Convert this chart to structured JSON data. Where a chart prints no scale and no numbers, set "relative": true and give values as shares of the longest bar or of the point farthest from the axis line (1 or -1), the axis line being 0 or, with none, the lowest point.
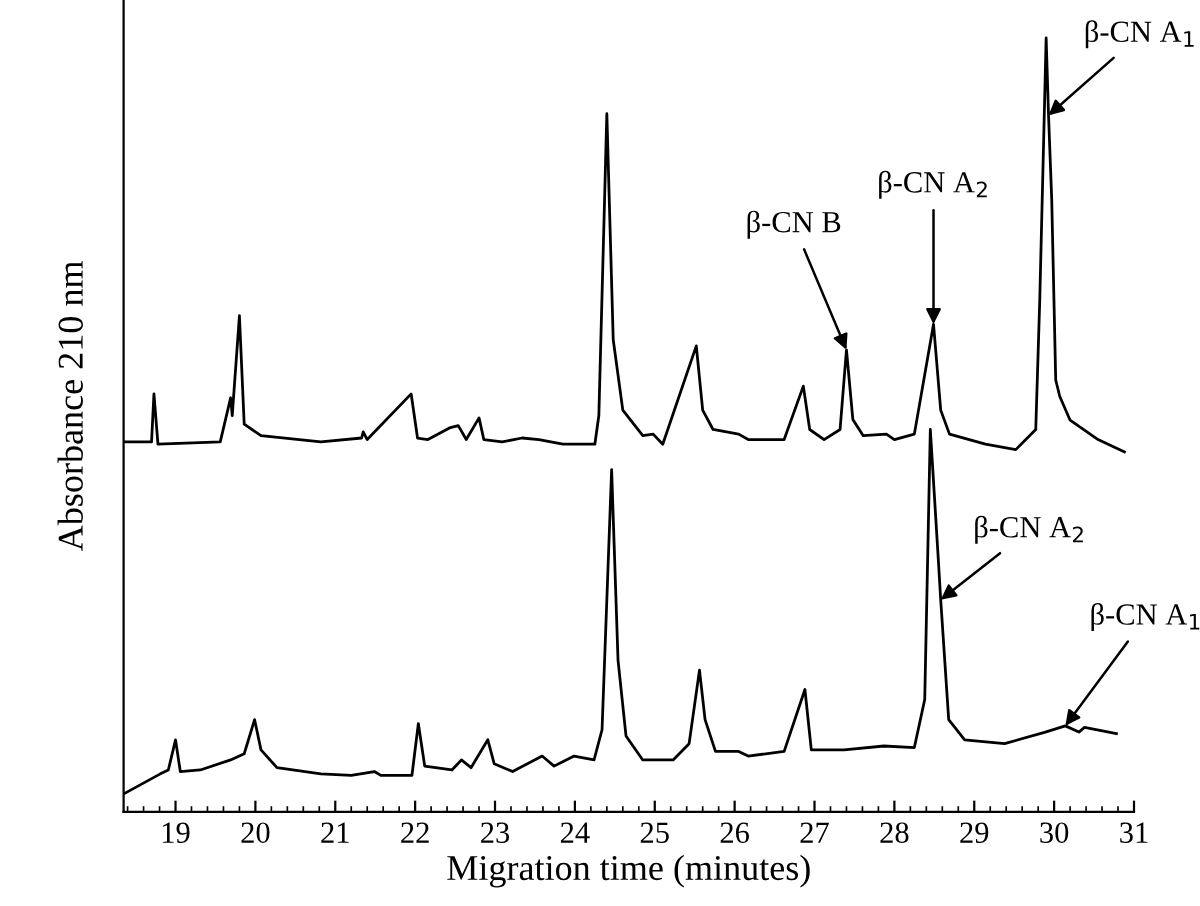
{
  "chart_data": {
    "type": "line",
    "relative": true,
    "xlabel": "Migration time (minutes)",
    "ylabel": "Absorbance 210 nm",
    "xlim": [
      18.35,
      31
    ],
    "xticks": [
      19,
      20,
      21,
      22,
      23,
      24,
      25,
      26,
      27,
      28,
      29,
      30,
      31
    ],
    "grid": false,
    "legend": false,
    "marker": "none",
    "line_style": "solid",
    "tick_labels": "x",
    "series": [
      {
        "color": "#000000",
        "x": [
          18.35,
          18.7,
          18.73,
          18.78,
          19.56,
          19.69,
          19.71,
          19.8,
          19.86,
          20.07,
          20.82,
          21.33,
          21.35,
          21.4,
          21.95,
          22.03,
          22.16,
          22.43,
          22.54,
          22.64,
          22.8,
          22.86,
          23.09,
          23.34,
          23.55,
          23.85,
          24.25,
          24.3,
          24.4,
          24.48,
          24.6,
          24.85,
          24.98,
          25.1,
          25.52,
          25.6,
          25.73,
          26.05,
          26.17,
          26.62,
          26.86,
          26.94,
          27.12,
          27.32,
          27.4,
          27.48,
          27.61,
          27.9,
          28.0,
          28.25,
          28.49,
          28.58,
          28.69,
          29.14,
          29.52,
          29.77,
          29.82,
          29.9,
          29.93,
          29.97,
          30.02,
          30.07,
          30.2,
          30.55,
          30.88
        ],
        "values": [
          0.478,
          0.478,
          0.54,
          0.475,
          0.478,
          0.535,
          0.512,
          0.641,
          0.501,
          0.486,
          0.478,
          0.483,
          0.491,
          0.481,
          0.54,
          0.483,
          0.481,
          0.496,
          0.499,
          0.481,
          0.509,
          0.481,
          0.478,
          0.483,
          0.481,
          0.475,
          0.475,
          0.512,
          0.902,
          0.61,
          0.519,
          0.486,
          0.488,
          0.475,
          0.602,
          0.519,
          0.494,
          0.488,
          0.481,
          0.481,
          0.55,
          0.494,
          0.481,
          0.494,
          0.597,
          0.507,
          0.486,
          0.488,
          0.481,
          0.488,
          0.63,
          0.519,
          0.488,
          0.475,
          0.468,
          0.494,
          0.661,
          1.0,
          0.9,
          0.791,
          0.558,
          0.537,
          0.506,
          0.481,
          0.465
        ]
      },
      {
        "color": "#000000",
        "x": [
          18.35,
          18.81,
          18.91,
          19.0,
          19.06,
          19.31,
          19.69,
          19.86,
          19.99,
          20.07,
          20.27,
          20.82,
          21.2,
          21.49,
          21.57,
          21.96,
          22.04,
          22.12,
          22.46,
          22.58,
          22.7,
          22.91,
          22.99,
          23.22,
          23.59,
          23.74,
          23.99,
          24.24,
          24.34,
          24.46,
          24.54,
          24.64,
          24.85,
          25.23,
          25.43,
          25.56,
          25.63,
          25.76,
          26.05,
          26.17,
          26.62,
          26.88,
          26.96,
          27.37,
          27.87,
          28.25,
          28.38,
          28.45,
          28.55,
          28.58,
          28.68,
          28.88,
          29.38,
          29.89,
          30.14,
          30.31,
          30.38,
          30.78
        ],
        "values": [
          0.023,
          0.049,
          0.054,
          0.093,
          0.052,
          0.054,
          0.067,
          0.075,
          0.119,
          0.08,
          0.057,
          0.049,
          0.047,
          0.052,
          0.047,
          0.047,
          0.114,
          0.059,
          0.054,
          0.067,
          0.057,
          0.093,
          0.062,
          0.052,
          0.072,
          0.059,
          0.072,
          0.067,
          0.106,
          0.442,
          0.196,
          0.098,
          0.067,
          0.067,
          0.088,
          0.183,
          0.119,
          0.078,
          0.078,
          0.072,
          0.078,
          0.158,
          0.08,
          0.08,
          0.085,
          0.083,
          0.145,
          0.494,
          0.326,
          0.274,
          0.119,
          0.093,
          0.088,
          0.103,
          0.111,
          0.103,
          0.109,
          0.101
        ]
      }
    ],
    "annotations": [
      {
        "text": "β-CN B",
        "x": 27.4,
        "y": 0.597
      },
      {
        "text": "β-CN A$_{2}$",
        "x": 28.49,
        "y": 0.63
      },
      {
        "text": "β-CN A$_{1}$",
        "x": 29.93,
        "y": 0.9
      },
      {
        "text": "β-CN A$_{2}$",
        "x": 28.58,
        "y": 0.274
      },
      {
        "text": "β-CN A$_{1}$",
        "x": 30.14,
        "y": 0.111
      }
    ]
  }
}
